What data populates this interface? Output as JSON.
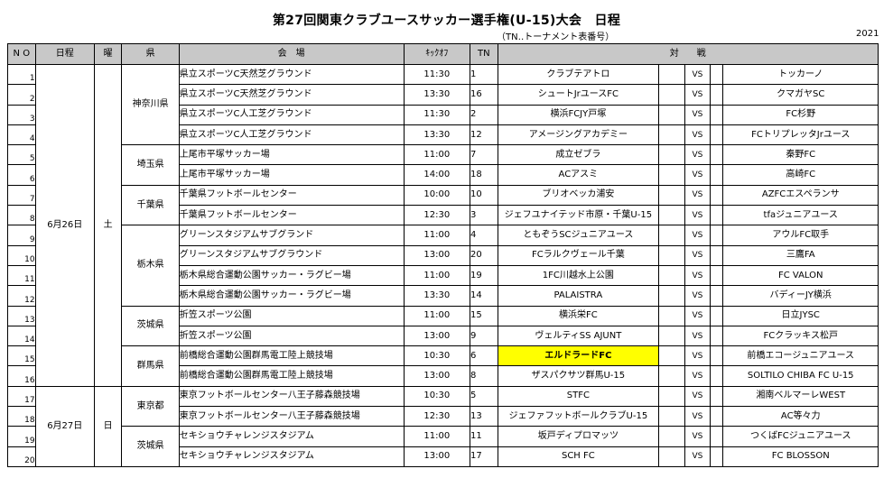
{
  "title": "第27回関東クラブユースサッカー選手権(U-15)大会　日程",
  "subtitle": "（TN‥トーナメント表番号）",
  "year": "2021",
  "headers": {
    "no": "N O",
    "date": "日程",
    "dow": "曜",
    "pref": "県",
    "venue": "会　場",
    "kickoff": "ｷｯｸｵﾌ",
    "tn": "TN",
    "match": "対　　戦"
  },
  "days": [
    {
      "date": "6月26日",
      "dow": "土"
    },
    {
      "date": "6月27日",
      "dow": "日"
    }
  ],
  "prefs": [
    "神奈川県",
    "埼玉県",
    "千葉県",
    "栃木県",
    "茨城県",
    "群馬県",
    "東京都",
    "茨城県"
  ],
  "rows": [
    {
      "no": "1",
      "venue": "県立スポーツC天然芝グラウンド",
      "time": "11:30",
      "tn": "1",
      "home": "クラブテアトロ",
      "vs": "VS",
      "away": "トッカーノ"
    },
    {
      "no": "2",
      "venue": "県立スポーツC天然芝グラウンド",
      "time": "13:30",
      "tn": "16",
      "home": "シュートJrユースFC",
      "vs": "VS",
      "away": "クマガヤSC"
    },
    {
      "no": "3",
      "venue": "県立スポーツC人工芝グラウンド",
      "time": "11:30",
      "tn": "2",
      "home": "横浜FCJY戸塚",
      "vs": "VS",
      "away": "FC杉野"
    },
    {
      "no": "4",
      "venue": "県立スポーツC人工芝グラウンド",
      "time": "13:30",
      "tn": "12",
      "home": "アメージングアカデミー",
      "vs": "VS",
      "away": "FCトリプレッタJrユース"
    },
    {
      "no": "5",
      "venue": "上尾市平塚サッカー場",
      "time": "11:00",
      "tn": "7",
      "home": "成立ゼブラ",
      "vs": "VS",
      "away": "秦野FC"
    },
    {
      "no": "6",
      "venue": "上尾市平塚サッカー場",
      "time": "14:00",
      "tn": "18",
      "home": "ACアスミ",
      "vs": "VS",
      "away": "高崎FC"
    },
    {
      "no": "7",
      "venue": "千葉県フットボールセンター",
      "time": "10:00",
      "tn": "10",
      "home": "ブリオベッカ浦安",
      "vs": "VS",
      "away": "AZFCエスペランサ"
    },
    {
      "no": "8",
      "venue": "千葉県フットボールセンター",
      "time": "12:30",
      "tn": "3",
      "home": "ジェフユナイテッド市原・千葉U-15",
      "vs": "VS",
      "away": "tfaジュニアユース"
    },
    {
      "no": "9",
      "venue": "グリーンスタジアムサブグランド",
      "time": "11:00",
      "tn": "4",
      "home": "ともぞうSCジュニアユース",
      "vs": "VS",
      "away": "アウルFC取手"
    },
    {
      "no": "10",
      "venue": "グリーンスタジアムサブグラウンド",
      "time": "13:00",
      "tn": "20",
      "home": "FCラルクヴェール千葉",
      "vs": "VS",
      "away": "三鷹FA"
    },
    {
      "no": "11",
      "venue": "栃木県総合運動公園サッカー・ラグビー場",
      "time": "11:00",
      "tn": "19",
      "home": "1FC川越水上公園",
      "vs": "VS",
      "away": "FC VALON"
    },
    {
      "no": "12",
      "venue": "栃木県総合運動公園サッカー・ラグビー場",
      "time": "13:30",
      "tn": "14",
      "home": "PALAISTRA",
      "vs": "VS",
      "away": "バディーJY横浜"
    },
    {
      "no": "13",
      "venue": "折笠スポーツ公園",
      "time": "11:00",
      "tn": "15",
      "home": "横浜栄FC",
      "vs": "VS",
      "away": "日立JYSC"
    },
    {
      "no": "14",
      "venue": "折笠スポーツ公園",
      "time": "13:00",
      "tn": "9",
      "home": "ヴェルティSS AJUNT",
      "vs": "VS",
      "away": "FCクラッキス松戸"
    },
    {
      "no": "15",
      "venue": "前橋総合運動公園群馬電工陸上競技場",
      "time": "10:30",
      "tn": "6",
      "home": "エルドラードFC",
      "vs": "VS",
      "away": "前橋エコージュニアユース",
      "highlight": true
    },
    {
      "no": "16",
      "venue": "前橋総合運動公園群馬電工陸上競技場",
      "time": "13:00",
      "tn": "8",
      "home": "ザスパクサツ群馬U-15",
      "vs": "VS",
      "away": "SOLTILO CHIBA FC U-15"
    },
    {
      "no": "17",
      "venue": "東京フットボールセンター八王子藤森競技場",
      "time": "10:30",
      "tn": "5",
      "home": "STFC",
      "vs": "VS",
      "away": "湘南ベルマーレWEST"
    },
    {
      "no": "18",
      "venue": "東京フットボールセンター八王子藤森競技場",
      "time": "12:30",
      "tn": "13",
      "home": "ジェファフットボールクラブU-15",
      "vs": "VS",
      "away": "AC等々力"
    },
    {
      "no": "19",
      "venue": "セキショウチャレンジスタジアム",
      "time": "11:00",
      "tn": "11",
      "home": "坂戸ディプロマッツ",
      "vs": "VS",
      "away": "つくばFCジュニアユース"
    },
    {
      "no": "20",
      "venue": "セキショウチャレンジスタジアム",
      "time": "13:00",
      "tn": "17",
      "home": "SCH FC",
      "vs": "VS",
      "away": "FC BLOSSON"
    }
  ]
}
